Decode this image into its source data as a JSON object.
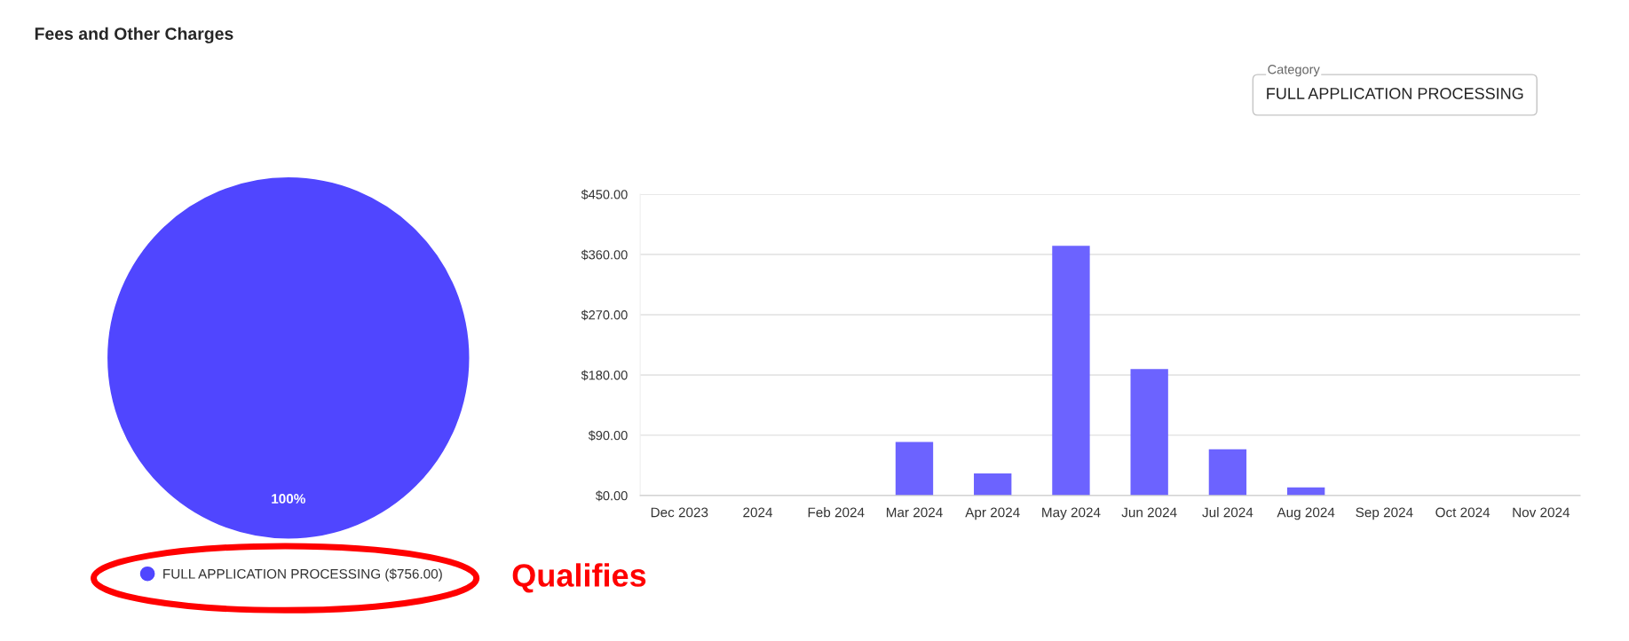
{
  "chart_data": [
    {
      "type": "pie",
      "title": "Fees and Other Charges",
      "categories": [
        "FULL APPLICATION PROCESSING ($756.00)"
      ],
      "values": [
        100
      ],
      "colors": [
        "#5046ff"
      ],
      "value_labels": [
        "100%"
      ],
      "legend": "bottom",
      "annotations": [
        "Qualifies"
      ]
    },
    {
      "type": "bar",
      "categories": [
        "Dec 2023",
        "2024",
        "Feb 2024",
        "Mar 2024",
        "Apr 2024",
        "May 2024",
        "Jun 2024",
        "Jul 2024",
        "Aug 2024",
        "Sep 2024",
        "Oct 2024",
        "Nov 2024"
      ],
      "series": [
        {
          "color": "#6c63ff",
          "values": [
            0,
            0,
            0,
            80,
            33,
            373,
            189,
            69,
            12,
            0,
            0,
            0
          ]
        }
      ],
      "ylim": [
        0,
        450
      ],
      "yticks": [
        {
          "value": 0,
          "label": "$0.00"
        },
        {
          "value": 90,
          "label": "$90.00"
        },
        {
          "value": 180,
          "label": "$180.00"
        },
        {
          "value": 270,
          "label": "$270.00"
        },
        {
          "value": 360,
          "label": "$360.00"
        },
        {
          "value": 450,
          "label": "$450.00"
        }
      ],
      "grid": "y",
      "annotations": [
        "Category",
        "FULL APPLICATION PROCESSING"
      ]
    }
  ]
}
